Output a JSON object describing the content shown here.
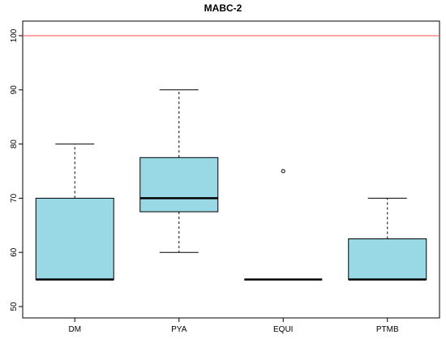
{
  "chart_data": {
    "type": "boxplot",
    "title": "MABC-2",
    "xlabel": "",
    "ylabel": "",
    "ylim": [
      50,
      102
    ],
    "yticks": [
      50,
      60,
      70,
      80,
      90,
      100
    ],
    "grid": false,
    "categories": [
      "DM",
      "PYA",
      "EQUI",
      "PTMB"
    ],
    "boxes": [
      {
        "category": "DM",
        "whisker_low": 55,
        "q1": 55,
        "median": 55,
        "q3": 70,
        "whisker_high": 80,
        "outliers": []
      },
      {
        "category": "PYA",
        "whisker_low": 60,
        "q1": 67.5,
        "median": 70,
        "q3": 77.5,
        "whisker_high": 90,
        "outliers": []
      },
      {
        "category": "EQUI",
        "whisker_low": 55,
        "q1": 55,
        "median": 55,
        "q3": 55,
        "whisker_high": 55,
        "outliers": [
          75
        ]
      },
      {
        "category": "PTMB",
        "whisker_low": 55,
        "q1": 55,
        "median": 55,
        "q3": 62.5,
        "whisker_high": 70,
        "outliers": []
      }
    ],
    "reference_line": {
      "y": 100,
      "color": "#ff4d4d"
    },
    "box_fill": "#99d9e6",
    "line_color": "#000000"
  }
}
